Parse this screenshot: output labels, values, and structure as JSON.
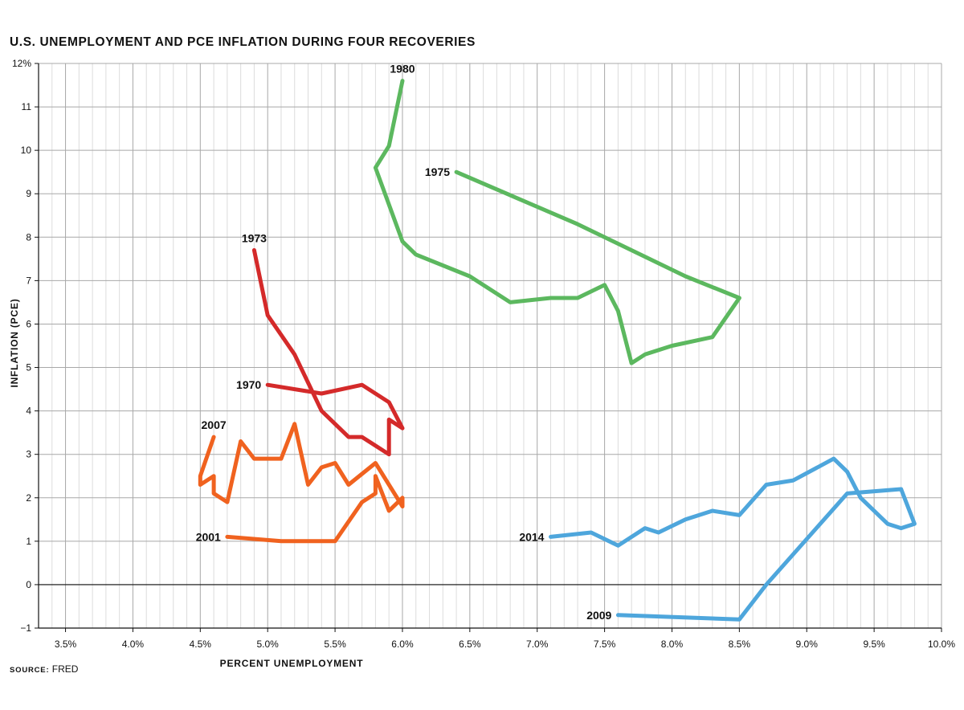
{
  "chart_data": {
    "type": "line",
    "title": "U.S. UNEMPLOYMENT AND PCE INFLATION DURING FOUR RECOVERIES",
    "xlabel": "PERCENT UNEMPLOYMENT",
    "ylabel": "INFLATION (PCE)",
    "xlim": [
      3.3,
      10.0
    ],
    "ylim": [
      -1.0,
      12.0
    ],
    "x_ticks": [
      {
        "value": 3.5,
        "label": "3.5%"
      },
      {
        "value": 4.0,
        "label": "4.0%"
      },
      {
        "value": 4.5,
        "label": "4.5%"
      },
      {
        "value": 5.0,
        "label": "5.0%"
      },
      {
        "value": 5.5,
        "label": "5.5%"
      },
      {
        "value": 6.0,
        "label": "6.0%"
      },
      {
        "value": 6.5,
        "label": "6.5%"
      },
      {
        "value": 7.0,
        "label": "7.0%"
      },
      {
        "value": 7.5,
        "label": "7.5%"
      },
      {
        "value": 8.0,
        "label": "8.0%"
      },
      {
        "value": 8.5,
        "label": "8.5%"
      },
      {
        "value": 9.0,
        "label": "9.0%"
      },
      {
        "value": 9.5,
        "label": "9.5%"
      },
      {
        "value": 10.0,
        "label": "10.0%"
      }
    ],
    "y_ticks": [
      {
        "value": 12,
        "label": "12%"
      },
      {
        "value": 11,
        "label": "11"
      },
      {
        "value": 10,
        "label": "10"
      },
      {
        "value": 9,
        "label": "9"
      },
      {
        "value": 8,
        "label": "8"
      },
      {
        "value": 7,
        "label": "7"
      },
      {
        "value": 6,
        "label": "6"
      },
      {
        "value": 5,
        "label": "5"
      },
      {
        "value": 4,
        "label": "4"
      },
      {
        "value": 3,
        "label": "3"
      },
      {
        "value": 2,
        "label": "2"
      },
      {
        "value": 1,
        "label": "1"
      },
      {
        "value": 0,
        "label": "0"
      },
      {
        "value": -1,
        "label": "−1"
      }
    ],
    "grid": true,
    "zero_line": true,
    "colors": {
      "red": "#d42a2a",
      "green": "#5cb85f",
      "orange": "#f0621f",
      "blue": "#4ea6dc"
    },
    "series": [
      {
        "start_label": "1970",
        "end_label": "1973",
        "color": "#d42a2a",
        "x": [
          5.0,
          5.4,
          5.7,
          5.9,
          6.0,
          5.9,
          5.9,
          5.8,
          5.7,
          5.6,
          5.4,
          5.2,
          5.0,
          4.9
        ],
        "y": [
          4.6,
          4.4,
          4.6,
          4.2,
          3.6,
          3.8,
          3.0,
          3.2,
          3.4,
          3.4,
          4.0,
          5.3,
          6.2,
          7.7
        ]
      },
      {
        "start_label": "1975",
        "end_label": "1980",
        "color": "#5cb85f",
        "x": [
          6.4,
          7.3,
          8.1,
          8.5,
          8.3,
          8.0,
          7.8,
          7.7,
          7.6,
          7.5,
          7.3,
          7.1,
          6.8,
          6.5,
          6.1,
          6.0,
          5.8,
          5.9,
          6.0
        ],
        "y": [
          9.5,
          8.3,
          7.1,
          6.6,
          5.7,
          5.5,
          5.3,
          5.1,
          6.3,
          6.9,
          6.6,
          6.6,
          6.5,
          7.1,
          7.6,
          7.9,
          9.6,
          10.1,
          11.6
        ]
      },
      {
        "start_label": "2001",
        "end_label": "2007",
        "color": "#f0621f",
        "x": [
          4.7,
          5.1,
          5.5,
          5.7,
          5.8,
          5.8,
          5.9,
          6.0,
          6.0,
          5.8,
          5.6,
          5.5,
          5.4,
          5.3,
          5.2,
          5.1,
          4.9,
          4.8,
          4.7,
          4.6,
          4.6,
          4.5,
          4.5,
          4.6
        ],
        "y": [
          1.1,
          1.0,
          1.0,
          1.9,
          2.1,
          2.5,
          1.7,
          2.0,
          1.8,
          2.8,
          2.3,
          2.8,
          2.7,
          2.3,
          3.7,
          2.9,
          2.9,
          3.3,
          1.9,
          2.1,
          2.5,
          2.3,
          2.5,
          3.4
        ]
      },
      {
        "start_label": "2009",
        "end_label": "2014",
        "color": "#4ea6dc",
        "x": [
          7.6,
          8.5,
          8.7,
          9.3,
          9.7,
          9.8,
          9.7,
          9.6,
          9.4,
          9.3,
          9.2,
          8.9,
          8.7,
          8.5,
          8.3,
          8.1,
          7.9,
          7.8,
          7.6,
          7.4,
          7.1
        ],
        "y": [
          -0.7,
          -0.8,
          0.0,
          2.1,
          2.2,
          1.4,
          1.3,
          1.4,
          2.0,
          2.6,
          2.9,
          2.4,
          2.3,
          1.6,
          1.7,
          1.5,
          1.2,
          1.3,
          0.9,
          1.2,
          1.1
        ]
      }
    ]
  },
  "source": {
    "label": "SOURCE:",
    "text": "FRED"
  }
}
